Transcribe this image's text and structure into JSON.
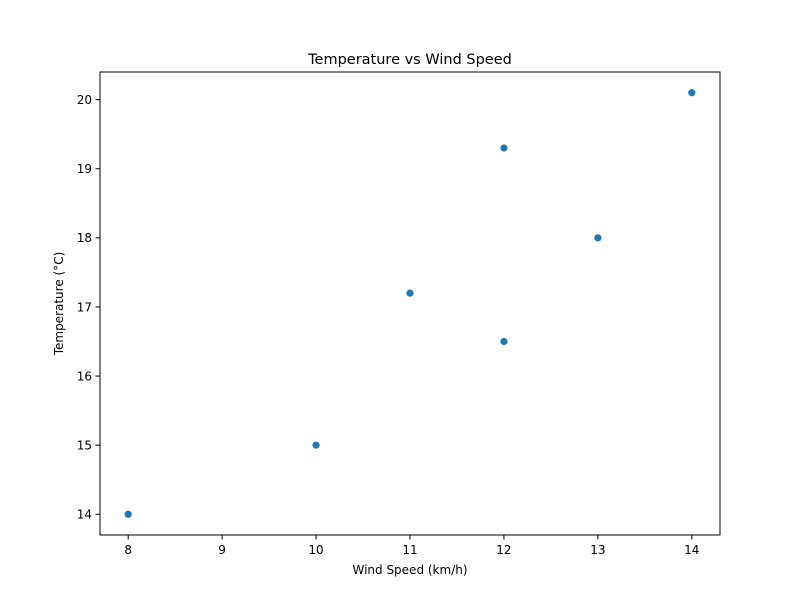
{
  "chart_data": {
    "type": "scatter",
    "title": "Temperature vs Wind Speed",
    "xlabel": "Wind Speed (km/h)",
    "ylabel": "Temperature (°C)",
    "xlim": [
      7.7,
      14.3
    ],
    "ylim": [
      13.7,
      20.4
    ],
    "grid": false,
    "x_ticks": [
      8,
      9,
      10,
      11,
      12,
      13,
      14
    ],
    "y_ticks": [
      14,
      15,
      16,
      17,
      18,
      19,
      20
    ],
    "marker_color": "#1f77b4",
    "points": [
      {
        "x": 8,
        "y": 14.0
      },
      {
        "x": 10,
        "y": 15.0
      },
      {
        "x": 11,
        "y": 17.2
      },
      {
        "x": 12,
        "y": 16.5
      },
      {
        "x": 12,
        "y": 19.3
      },
      {
        "x": 13,
        "y": 18.0
      },
      {
        "x": 14,
        "y": 20.1
      }
    ]
  }
}
